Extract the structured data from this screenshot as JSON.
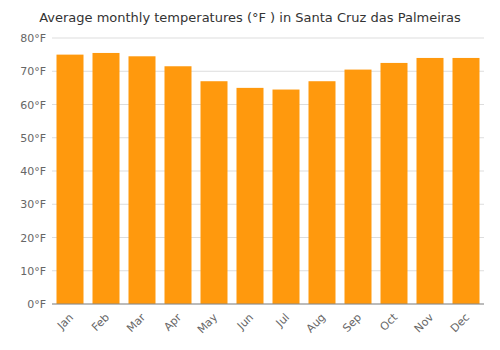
{
  "chart_data": {
    "type": "bar",
    "title": "Average monthly temperatures (°F ) in Santa Cruz das Palmeiras",
    "categories": [
      "Jan",
      "Feb",
      "Mar",
      "Apr",
      "May",
      "Jun",
      "Jul",
      "Aug",
      "Sep",
      "Oct",
      "Nov",
      "Dec"
    ],
    "values": [
      75.0,
      75.5,
      74.5,
      71.5,
      67.0,
      65.0,
      64.5,
      67.0,
      70.5,
      72.5,
      74.0,
      74.0
    ],
    "color": "#ff990d",
    "ylim": [
      0,
      80
    ],
    "yticks": [
      {
        "value": 0,
        "label": "0°F"
      },
      {
        "value": 10,
        "label": "10°F"
      },
      {
        "value": 20,
        "label": "20°F"
      },
      {
        "value": 30,
        "label": "30°F"
      },
      {
        "value": 40,
        "label": "40°F"
      },
      {
        "value": 50,
        "label": "50°F"
      },
      {
        "value": 60,
        "label": "60°F"
      },
      {
        "value": 70,
        "label": "70°F"
      },
      {
        "value": 80,
        "label": "80°F"
      }
    ],
    "grid": true
  }
}
